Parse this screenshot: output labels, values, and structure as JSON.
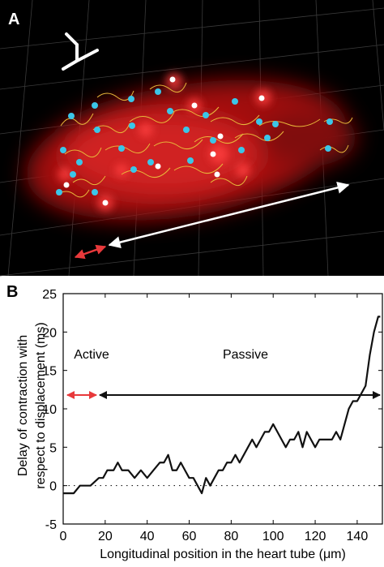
{
  "image_panel": {
    "label": "A"
  },
  "chart_data": {
    "type": "line",
    "panel_label": "B",
    "ylabel": [
      "Delay of contraction with",
      "respect to displacement (ms)"
    ],
    "xlabel": "Longitudinal position in the heart tube (μm)",
    "annotations": [
      "Active",
      "Passive"
    ],
    "color": "#111111",
    "x": [
      0,
      5,
      8,
      13,
      17,
      19,
      21,
      24,
      26,
      28,
      31,
      34,
      37,
      40,
      43,
      46,
      48,
      50,
      52,
      54,
      56,
      58,
      60,
      62,
      64,
      66,
      68,
      70,
      72,
      74,
      76,
      78,
      80,
      82,
      84,
      86,
      88,
      90,
      92,
      94,
      96,
      98,
      100,
      102,
      104,
      106,
      108,
      110,
      112,
      114,
      116,
      118,
      120,
      122,
      124,
      126,
      128,
      130,
      132,
      134,
      136,
      138,
      140,
      142,
      144,
      146,
      148,
      150,
      151
    ],
    "values": [
      -1,
      -1,
      0,
      0,
      1,
      1,
      2,
      2,
      3,
      2,
      2,
      1,
      2,
      1,
      2,
      3,
      3,
      4,
      2,
      2,
      3,
      2,
      1,
      1,
      0,
      -1,
      1,
      0,
      1,
      2,
      2,
      3,
      3,
      4,
      3,
      4,
      5,
      6,
      5,
      6,
      7,
      7,
      8,
      7,
      6,
      5,
      6,
      6,
      7,
      5,
      7,
      6,
      5,
      6,
      6,
      6,
      6,
      7,
      6,
      8,
      10,
      11,
      11,
      12,
      13,
      17,
      20,
      22,
      22
    ],
    "xlim": [
      0,
      152
    ],
    "ylim": [
      -5,
      25
    ],
    "xticks": [
      0,
      20,
      40,
      60,
      80,
      100,
      120,
      140
    ],
    "yticks": [
      -5,
      0,
      5,
      10,
      15,
      20,
      25
    ]
  }
}
